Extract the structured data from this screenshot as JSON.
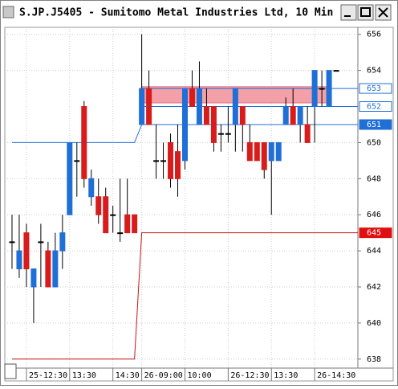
{
  "chart_data": {
    "type": "candlestick",
    "title": "S.JP.J5405 - Sumitomo Metal Industries Ltd, 10 Min",
    "ylim": [
      637.5,
      656.3
    ],
    "yticks": [
      638,
      640,
      642,
      644,
      646,
      648,
      650,
      654,
      656
    ],
    "xlim": [
      -1,
      48
    ],
    "xticks": [
      {
        "value": 2,
        "label": "25-12:30"
      },
      {
        "value": 8,
        "label": "13:30"
      },
      {
        "value": 14,
        "label": "14:30"
      },
      {
        "value": 18,
        "label": "26-09:00"
      },
      {
        "value": 24,
        "label": "10:00"
      },
      {
        "value": 30,
        "label": "26-12:30"
      },
      {
        "value": 36,
        "label": "13:30"
      },
      {
        "value": 42,
        "label": "26-14:30"
      }
    ],
    "grid": true,
    "up_color": "#1f6fd6",
    "down_color": "#d81c1c",
    "series": [
      {
        "name": "S.JP.J5405",
        "open": [
          644.5,
          643,
          645,
          642,
          644.5,
          644,
          642,
          644,
          646,
          649,
          652,
          647,
          647,
          647,
          646,
          645,
          646,
          646,
          651,
          653,
          649,
          649,
          650,
          649.5,
          649,
          653,
          651,
          652,
          652,
          650.5,
          650.5,
          651,
          652,
          650,
          650,
          650,
          649,
          649,
          651,
          652,
          651,
          651,
          652,
          653,
          652,
          654
        ],
        "high": [
          646,
          646,
          645.5,
          643,
          645.5,
          644.5,
          645,
          646,
          650,
          650,
          652.3,
          648.5,
          648,
          647.5,
          646.5,
          648,
          648,
          646,
          656,
          654,
          651,
          650,
          650.5,
          651,
          653,
          654,
          654.5,
          653,
          652,
          651,
          652,
          653,
          652,
          651,
          650,
          650,
          650,
          650,
          652.5,
          653,
          652,
          652,
          654,
          654,
          654,
          654
        ],
        "low": [
          643,
          642.5,
          642,
          640,
          642,
          642,
          642,
          643,
          646,
          647,
          647.5,
          646.5,
          645.5,
          645,
          645,
          644.5,
          645,
          645,
          651,
          651,
          648,
          648,
          647.5,
          647,
          648.5,
          652,
          651,
          651,
          649.5,
          649.5,
          650,
          649.5,
          649.5,
          649,
          649,
          648,
          646,
          649,
          651,
          651,
          650,
          650,
          650,
          652,
          652,
          654
        ],
        "close": [
          644.5,
          644,
          643,
          643,
          644.5,
          642,
          644,
          645,
          650,
          649,
          648,
          648,
          646,
          645,
          646,
          645,
          645,
          645,
          653,
          651,
          649,
          649,
          648,
          648,
          653,
          652,
          653,
          651,
          650,
          650.5,
          650.5,
          653,
          651,
          649,
          649,
          648.5,
          650,
          650,
          652,
          651,
          652,
          650,
          654,
          653,
          654,
          654
        ]
      }
    ],
    "lines": [
      {
        "name": "trend",
        "color": "#1f6fd6",
        "points": [
          [
            0,
            650
          ],
          [
            17,
            650
          ],
          [
            18,
            651
          ],
          [
            48,
            651
          ]
        ]
      },
      {
        "name": "stop",
        "color": "#c81414",
        "points": [
          [
            0,
            638
          ],
          [
            17,
            638
          ],
          [
            18,
            645
          ],
          [
            48,
            645
          ]
        ]
      },
      {
        "name": "level-653",
        "color": "#1f6fd6",
        "points": [
          [
            18,
            653
          ],
          [
            48,
            653
          ]
        ]
      },
      {
        "name": "level-652",
        "color": "#1f6fd6",
        "points": [
          [
            18,
            652
          ],
          [
            48,
            652
          ]
        ]
      }
    ],
    "zone": {
      "from": 18,
      "to": 44,
      "low": 652.2,
      "high": 653.1,
      "color": "#f4a0a8"
    },
    "axis_markers": [
      {
        "value": 653,
        "fill": "#ffffff",
        "stroke": "#1f6fd6",
        "text": "#1f6fd6"
      },
      {
        "value": 652,
        "fill": "#ffffff",
        "stroke": "#1f6fd6",
        "text": "#1f6fd6"
      },
      {
        "value": 651,
        "fill": "#1f6fd6",
        "stroke": "#1f6fd6",
        "text": "#ffffff"
      },
      {
        "value": 645,
        "fill": "#e01010",
        "stroke": "#e01010",
        "text": "#ffffff"
      }
    ]
  }
}
